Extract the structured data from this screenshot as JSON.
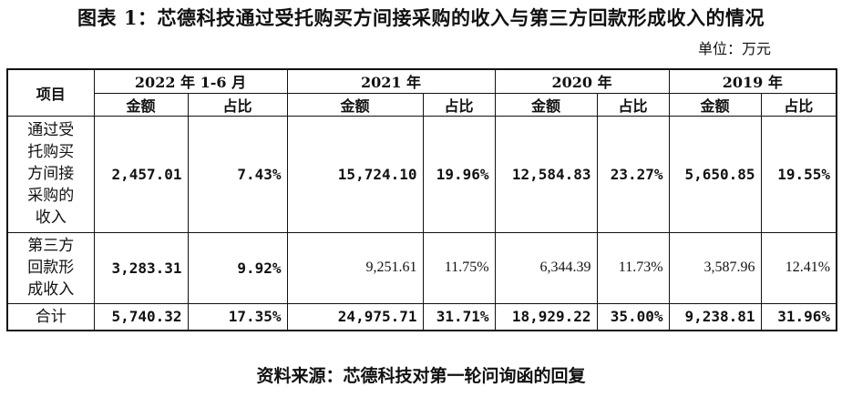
{
  "title": "图表 1：芯德科技通过受托购买方间接采购的收入与第三方回款形成收入的情况",
  "unit": "单位：万元",
  "table": {
    "item_header": "项目",
    "periods": [
      "2022 年 1-6 月",
      "2021 年",
      "2020 年",
      "2019 年"
    ],
    "sub_headers": [
      "金额",
      "占比"
    ],
    "rows": [
      {
        "label": "通过受托购买方间接采购的收入",
        "label_lines": [
          "通过受",
          "托购买",
          "方间接",
          "采购的",
          "收入"
        ],
        "cells": [
          "2,457.01",
          "7.43%",
          "15,724.10",
          "19.96%",
          "12,584.83",
          "23.27%",
          "5,650.85",
          "19.55%"
        ]
      },
      {
        "label": "第三方回款形成收入",
        "label_lines": [
          "第三方",
          "回款形",
          "成收入"
        ],
        "cells": [
          "3,283.31",
          "9.92%",
          "9,251.61",
          "11.75%",
          "6,344.39",
          "11.73%",
          "3,587.96",
          "12.41%"
        ]
      },
      {
        "label": "合计",
        "label_lines": [
          "合计"
        ],
        "cells": [
          "5,740.32",
          "17.35%",
          "24,975.71",
          "31.71%",
          "18,929.22",
          "35.00%",
          "9,238.81",
          "31.96%"
        ]
      }
    ]
  },
  "source": "资料来源：芯德科技对第一轮问询函的回复"
}
